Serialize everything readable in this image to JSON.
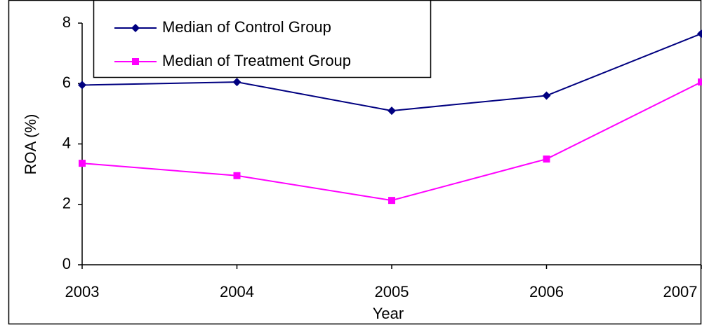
{
  "chart_data": {
    "type": "line",
    "x_label": "Year",
    "y_label": "ROA (%)",
    "categories": [
      "2003",
      "2004",
      "2005",
      "2006",
      "2007"
    ],
    "series": [
      {
        "name": "Median of Control Group",
        "color": "#000080",
        "marker": "diamond",
        "values": [
          5.95,
          6.05,
          5.1,
          5.6,
          7.65
        ]
      },
      {
        "name": "Median of Treatment Group",
        "color": "#ff00ff",
        "marker": "square",
        "values": [
          3.36,
          2.95,
          2.13,
          3.5,
          6.05
        ]
      }
    ],
    "ylim": [
      0,
      8
    ],
    "yticks": [
      0,
      2,
      4,
      6,
      8
    ],
    "grid": false,
    "legend": "top-left"
  }
}
